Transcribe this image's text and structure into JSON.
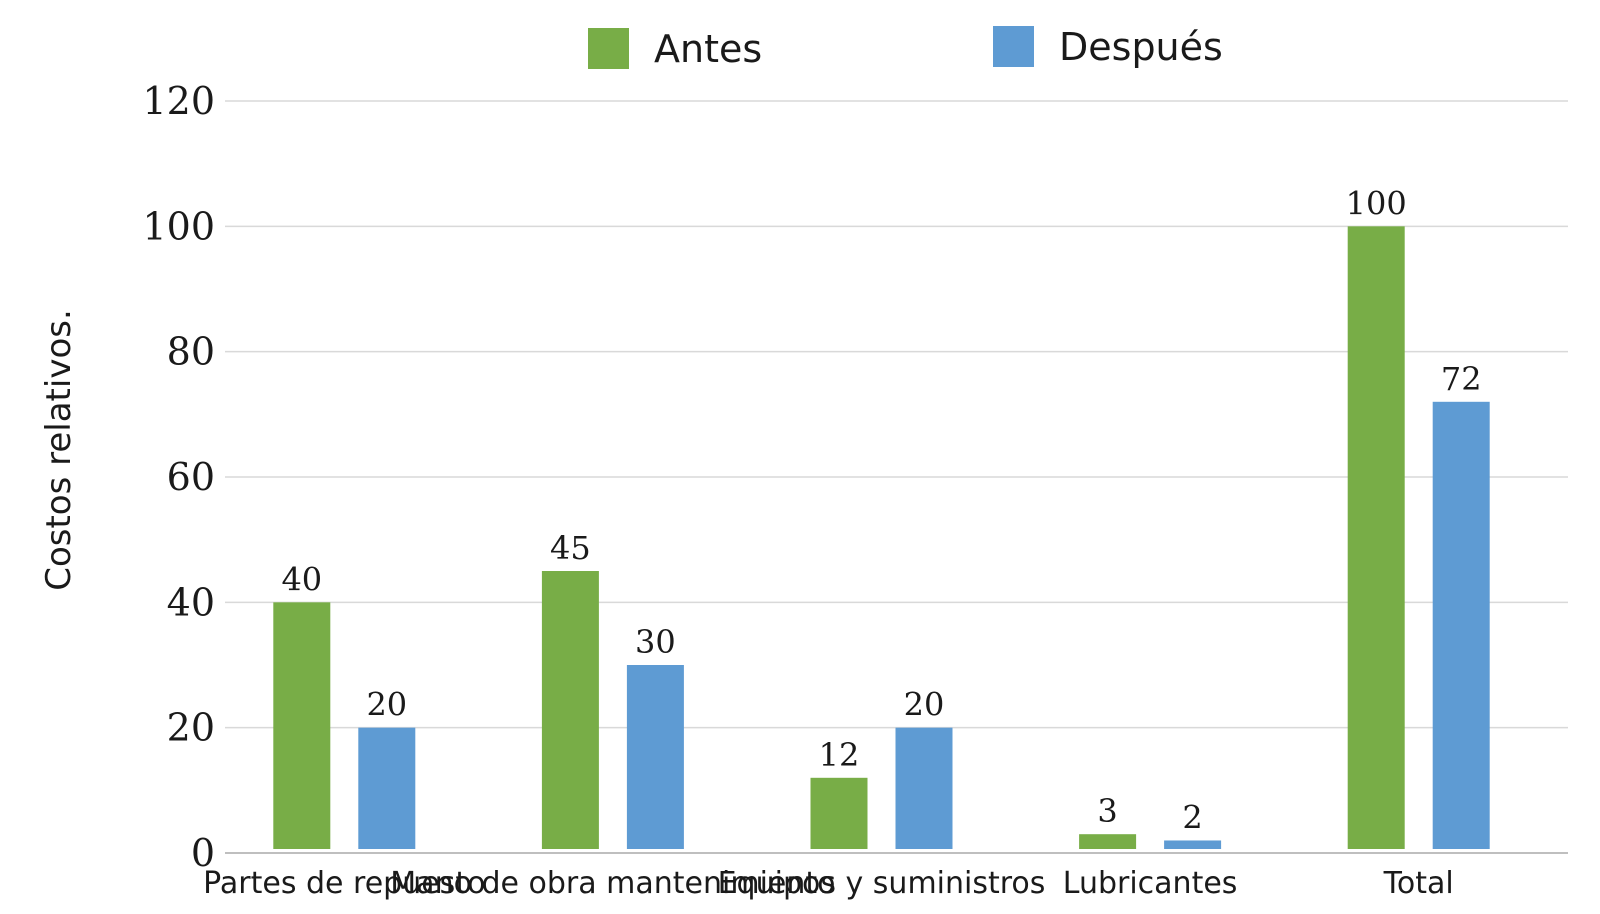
{
  "chart_data": {
    "type": "bar",
    "categories": [
      "Partes de repuesto",
      "Mano de obra mantenimiento",
      "Equipos y suministros",
      "Lubricantes",
      "Total"
    ],
    "series": [
      {
        "name": "Antes",
        "values": [
          40,
          45,
          12,
          3,
          100
        ],
        "color": "#78ad47"
      },
      {
        "name": "Después",
        "values": [
          20,
          30,
          20,
          2,
          72
        ],
        "color": "#5e9bd3"
      }
    ],
    "ylabel": "Costos relativos.",
    "xlabel": "",
    "ylim": [
      0,
      120
    ],
    "yticks": [
      0,
      20,
      40,
      60,
      80,
      100,
      120
    ],
    "grid": true,
    "legend_position": "top"
  }
}
